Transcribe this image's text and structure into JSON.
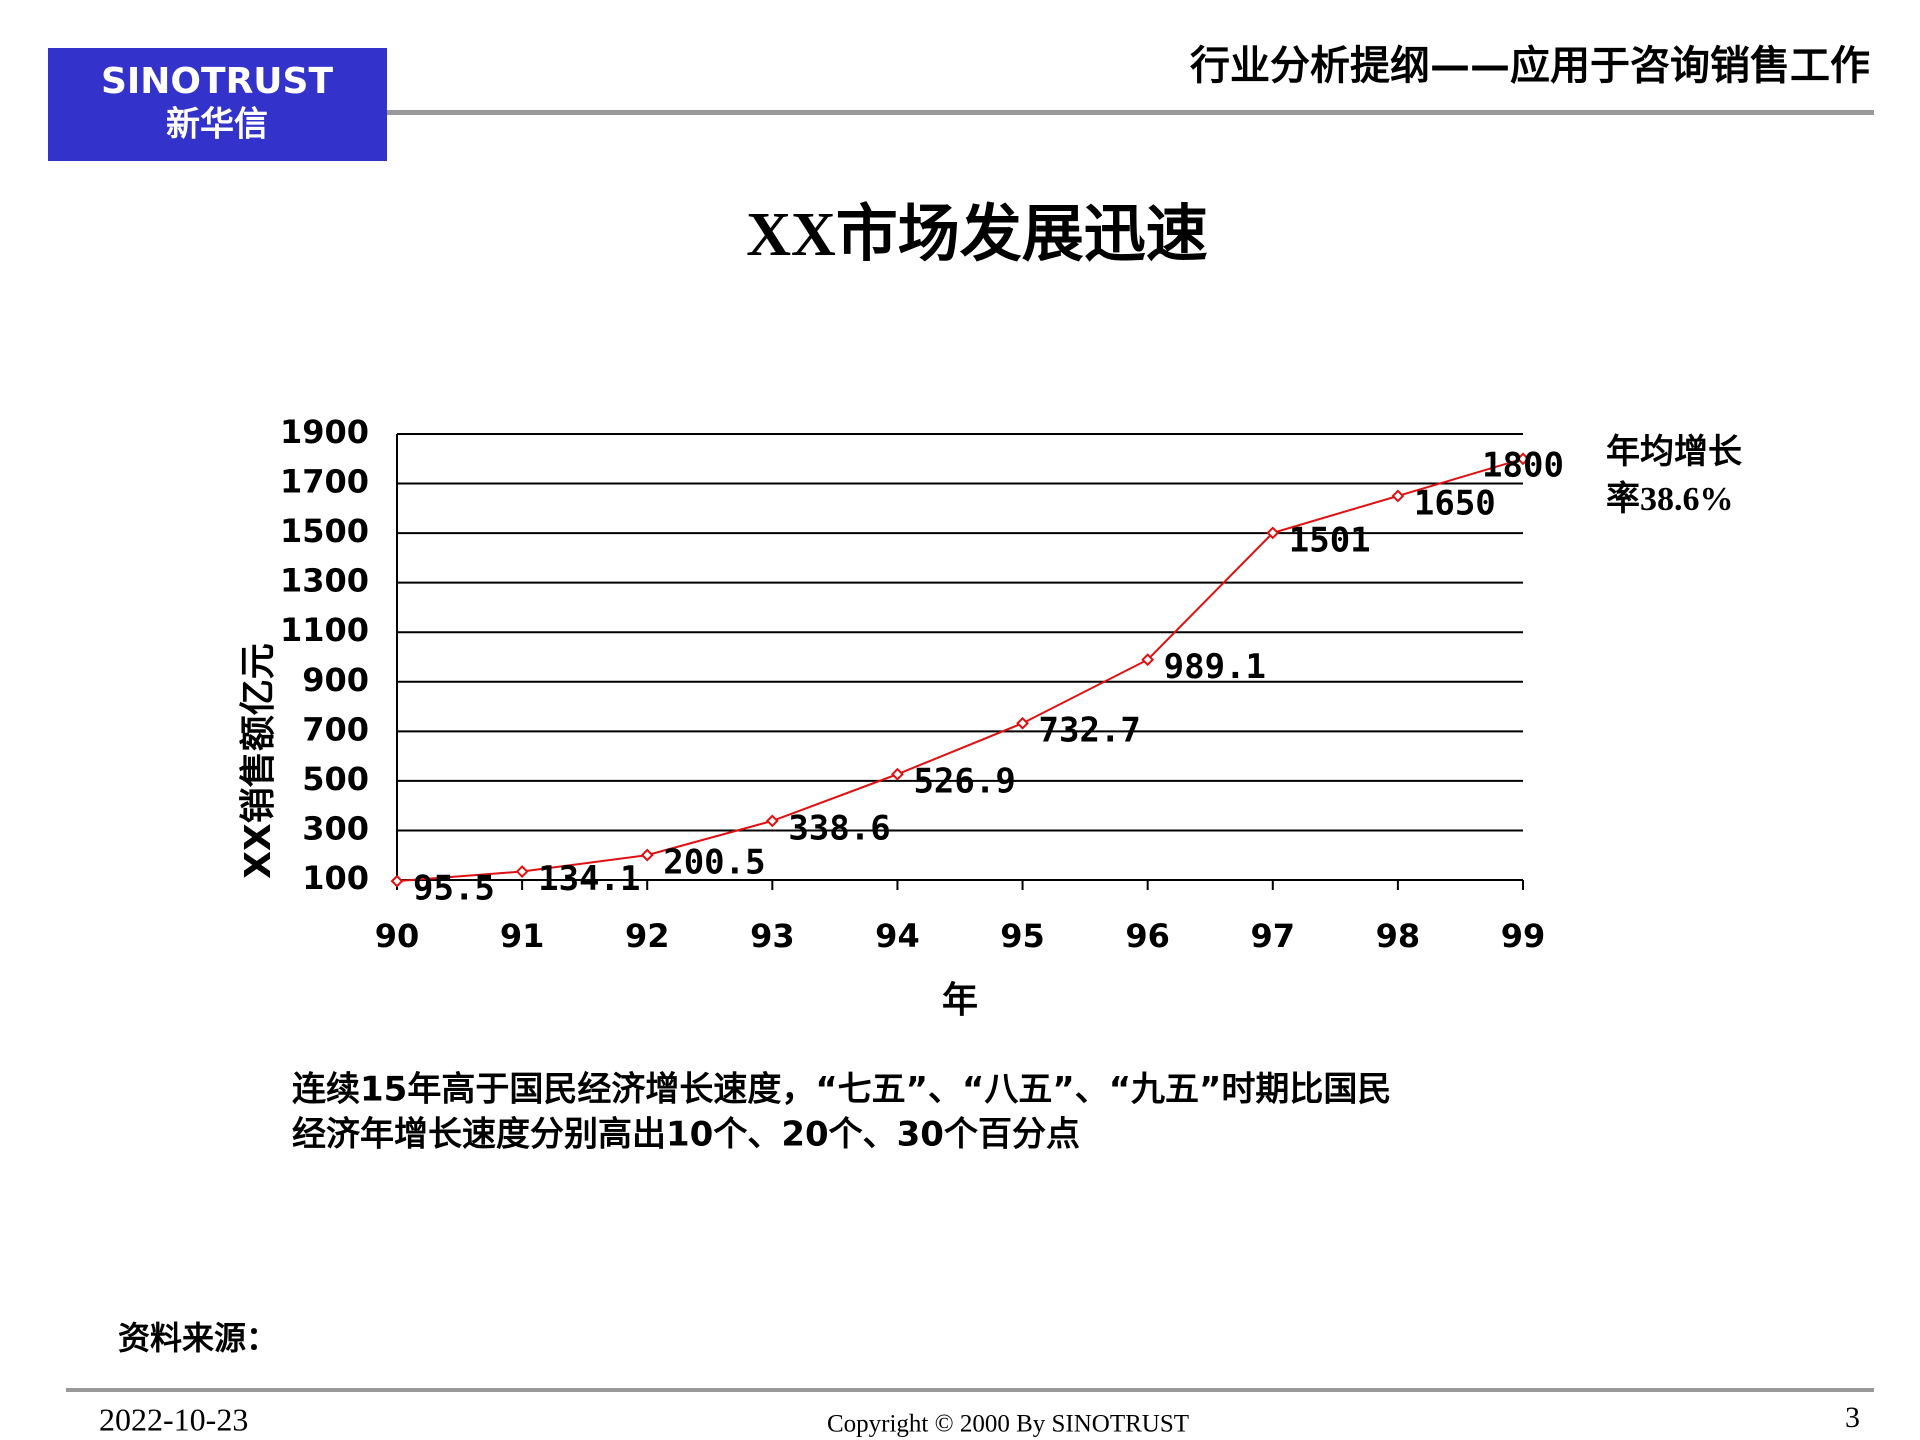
{
  "header": {
    "logo": "SINOTRUST",
    "logo_sub": "新华信",
    "title": "行业分析提纲——应用于咨询销售工作"
  },
  "slide_title": "XX市场发展迅速",
  "chart_data": {
    "type": "line",
    "ylabel": "XX销售额亿元",
    "xlabel": "年",
    "categories": [
      "90",
      "91",
      "92",
      "93",
      "94",
      "95",
      "96",
      "97",
      "98",
      "99"
    ],
    "values": [
      95.5,
      134.1,
      200.5,
      338.6,
      526.9,
      732.7,
      989.1,
      1501,
      1650,
      1800
    ],
    "color": "#e01010",
    "ylim": [
      100,
      1900
    ],
    "yticks": [
      100,
      300,
      500,
      700,
      900,
      1100,
      1300,
      1500,
      1700,
      1900
    ],
    "grid": true,
    "annotation": [
      "年均增长",
      "率38.6%"
    ]
  },
  "note": [
    "连续15年高于国民经济增长速度，“七五”、“八五”、“九五”时期比国民",
    "经济年增长速度分别高出10个、20个、30个百分点"
  ],
  "source": "资料来源：",
  "footer": {
    "date": "2022-10-23",
    "copyright": "Copyright © 2000 By SINOTRUST",
    "page": "3"
  }
}
